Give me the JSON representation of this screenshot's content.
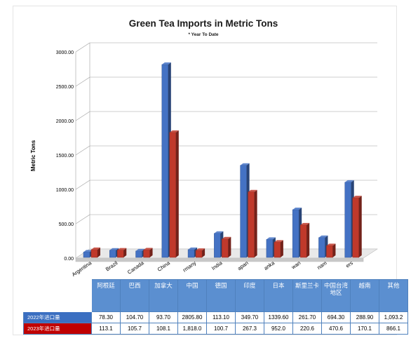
{
  "chart_data": {
    "type": "bar",
    "title": "Green Tea Imports in Metric Tons",
    "subtitle": "* Year To Date",
    "ylabel": "Metric Tons",
    "xlabel": "",
    "ylim": [
      0,
      3000
    ],
    "yticks": [
      "0.00",
      "500.00",
      "1000.00",
      "1500.00",
      "2000.00",
      "2500.00",
      "3000.00"
    ],
    "categories": [
      "Argentina",
      "Brazil",
      "Canada",
      "China",
      "Germany",
      "India",
      "Japan",
      "Sri Lanka",
      "Taiwan",
      "Vietnam",
      "Others"
    ],
    "category_labels_visible": [
      "Argentina",
      "Brazil",
      "Canada",
      "China",
      "rmany",
      "India",
      "apan",
      "anka",
      "wan",
      "nam",
      "ers"
    ],
    "table_headers": [
      "阿根廷",
      "巴西",
      "加拿大",
      "中国",
      "德国",
      "印度",
      "日本",
      "斯里兰卡",
      "中国台湾地区",
      "越南",
      "其他"
    ],
    "series": [
      {
        "name": "2022年进口量",
        "color": "#4472c4",
        "values": [
          78.3,
          104.7,
          93.7,
          2805.8,
          113.1,
          349.7,
          1339.6,
          261.7,
          694.3,
          288.9,
          1093.2
        ],
        "display": [
          "78.30",
          "104.70",
          "93.70",
          "2805.80",
          "113.10",
          "349.70",
          "1339.60",
          "261.70",
          "694.30",
          "288.90",
          "1,093.2"
        ]
      },
      {
        "name": "2023年进口量",
        "color": "#c0392b",
        "values": [
          113.1,
          105.7,
          108.1,
          1818.0,
          100.7,
          267.3,
          952.0,
          220.6,
          470.6,
          170.1,
          866.1
        ],
        "display": [
          "113.1",
          "105.7",
          "108.1",
          "1,818.0",
          "100.7",
          "267.3",
          "952.0",
          "220.6",
          "470.6",
          "170.1",
          "866.1"
        ]
      }
    ],
    "grid": true,
    "legend": "table-left"
  }
}
